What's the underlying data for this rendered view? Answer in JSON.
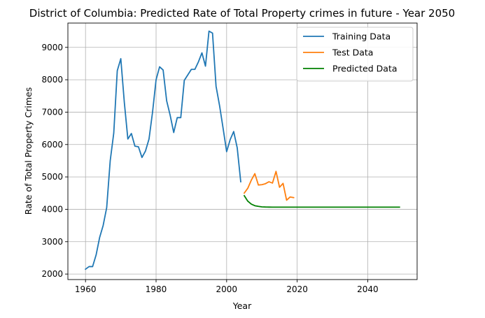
{
  "chart_data": {
    "type": "line",
    "title": "District of Columbia: Predicted Rate of Total Property crimes in future - Year 2050",
    "xlabel": "Year",
    "ylabel": "Rate of Total Property Crimes",
    "xlim": [
      1955,
      2054
    ],
    "ylim": [
      1830,
      9750
    ],
    "xticks": [
      1960,
      1980,
      2000,
      2020,
      2040
    ],
    "yticks": [
      2000,
      3000,
      4000,
      5000,
      6000,
      7000,
      8000,
      9000
    ],
    "grid": true,
    "legend_position": "top-right",
    "series": [
      {
        "name": "Training Data",
        "color": "#1f77b4",
        "x": [
          1960,
          1961,
          1962,
          1963,
          1964,
          1965,
          1966,
          1967,
          1968,
          1969,
          1970,
          1971,
          1972,
          1973,
          1974,
          1975,
          1976,
          1977,
          1978,
          1979,
          1980,
          1981,
          1982,
          1983,
          1984,
          1985,
          1986,
          1987,
          1988,
          1989,
          1990,
          1991,
          1992,
          1993,
          1994,
          1995,
          1996,
          1997,
          1998,
          1999,
          2000,
          2001,
          2002,
          2003,
          2004
        ],
        "y": [
          2150,
          2230,
          2230,
          2590,
          3130,
          3500,
          4050,
          5500,
          6350,
          8280,
          8650,
          7300,
          6170,
          6340,
          5950,
          5930,
          5600,
          5800,
          6170,
          7000,
          8000,
          8400,
          8300,
          7350,
          6900,
          6370,
          6830,
          6830,
          7980,
          8150,
          8320,
          8320,
          8550,
          8830,
          8420,
          9500,
          9440,
          7800,
          7200,
          6500,
          5780,
          6150,
          6400,
          5900,
          4850
        ]
      },
      {
        "name": "Test Data",
        "color": "#ff7f0e",
        "x": [
          2005,
          2006,
          2007,
          2008,
          2009,
          2010,
          2011,
          2012,
          2013,
          2014,
          2015,
          2016,
          2017,
          2018,
          2019
        ],
        "y": [
          4500,
          4650,
          4900,
          5100,
          4750,
          4760,
          4790,
          4850,
          4810,
          5170,
          4680,
          4800,
          4280,
          4380,
          4360
        ]
      },
      {
        "name": "Predicted Data",
        "color": "#008000",
        "x": [
          2005,
          2006,
          2007,
          2008,
          2009,
          2010,
          2011,
          2012,
          2013,
          2014,
          2015,
          2016,
          2017,
          2018,
          2019,
          2020,
          2021,
          2022,
          2023,
          2024,
          2025,
          2026,
          2027,
          2028,
          2029,
          2030,
          2031,
          2032,
          2033,
          2034,
          2035,
          2036,
          2037,
          2038,
          2039,
          2040,
          2041,
          2042,
          2043,
          2044,
          2045,
          2046,
          2047,
          2048,
          2049
        ],
        "y": [
          4420,
          4250,
          4160,
          4110,
          4090,
          4075,
          4070,
          4068,
          4067,
          4067,
          4067,
          4067,
          4067,
          4067,
          4067,
          4067,
          4067,
          4067,
          4067,
          4067,
          4067,
          4067,
          4067,
          4067,
          4067,
          4067,
          4067,
          4067,
          4067,
          4067,
          4067,
          4067,
          4067,
          4067,
          4067,
          4067,
          4067,
          4067,
          4067,
          4067,
          4067,
          4067,
          4067,
          4067,
          4067
        ]
      }
    ]
  }
}
